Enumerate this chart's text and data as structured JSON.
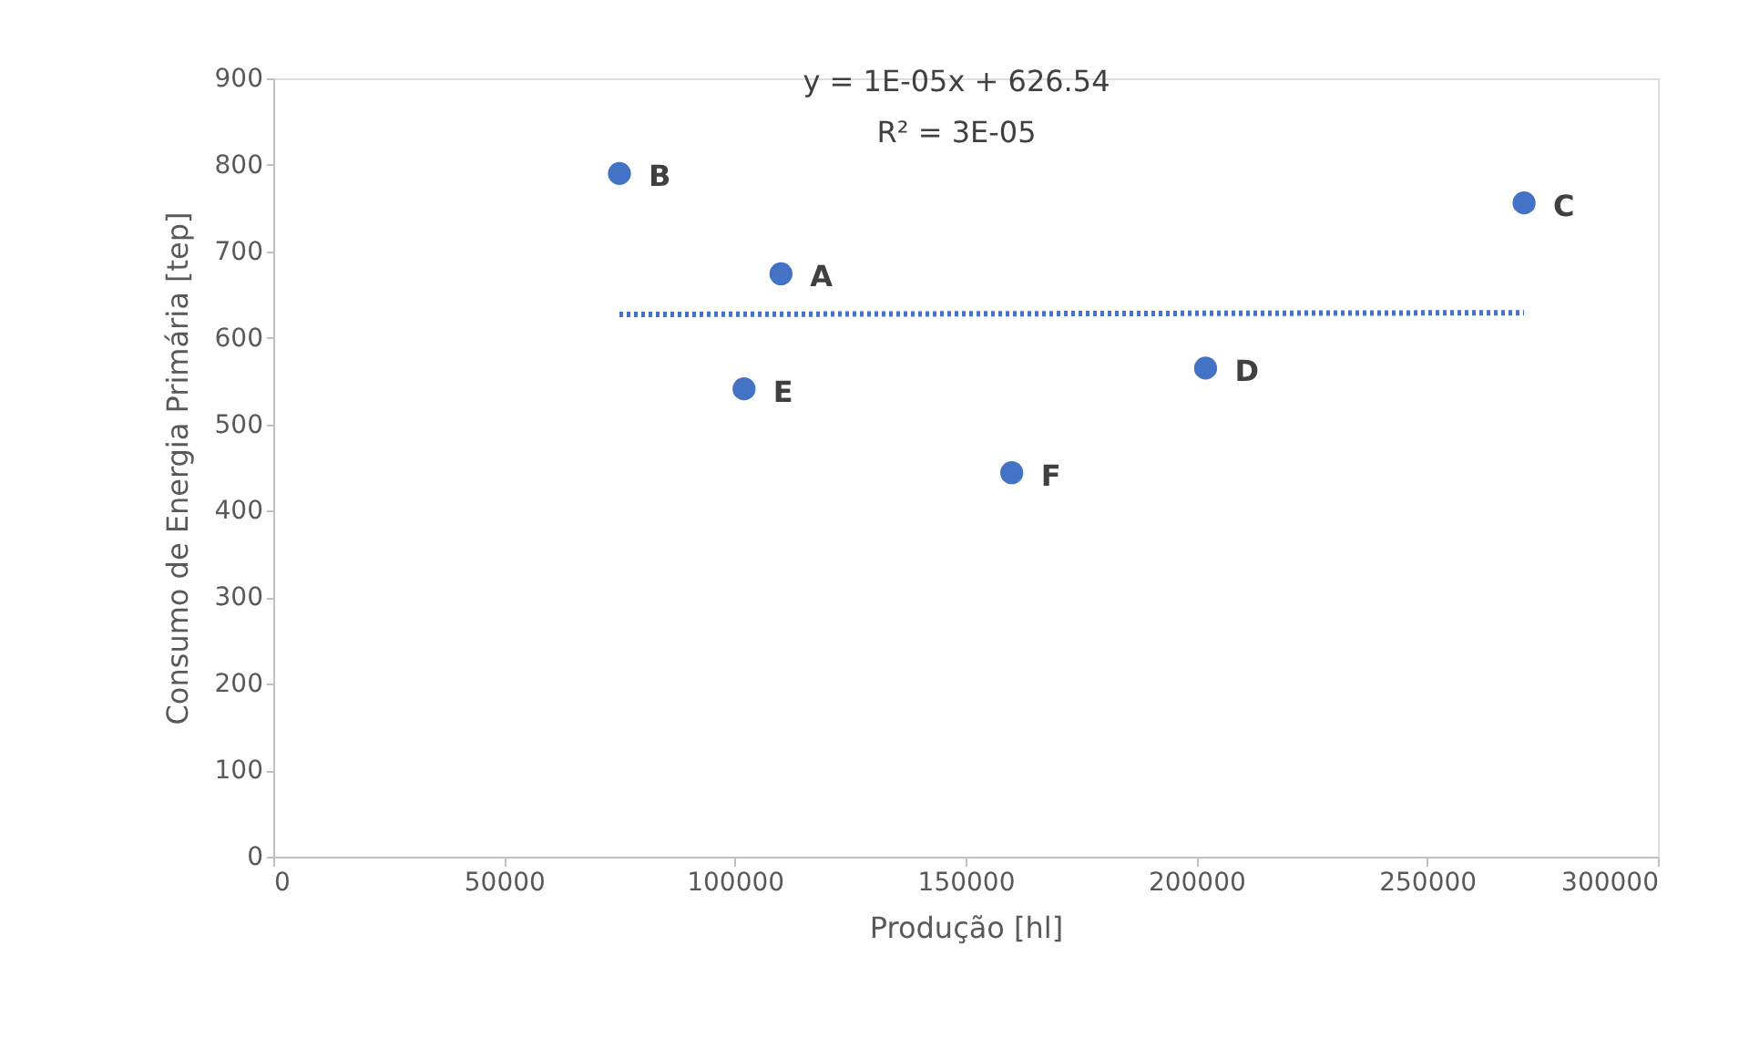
{
  "chart_data": {
    "type": "scatter",
    "xlabel": "Produção [hl]",
    "ylabel": "Consumo de Energia Primária [tep]",
    "xlim": [
      0,
      300000
    ],
    "xticks": [
      0,
      50000,
      100000,
      150000,
      200000,
      250000,
      300000
    ],
    "ylim": [
      0,
      900
    ],
    "yticks": [
      0,
      100,
      200,
      300,
      400,
      500,
      600,
      700,
      800,
      900
    ],
    "grid": false,
    "series": [
      {
        "color": "#4472c4",
        "x": [
          110000,
          75000,
          271000,
          202000,
          102000,
          160000
        ],
        "values": [
          674,
          790,
          756,
          565,
          541,
          444
        ]
      },
      {
        "type": "line",
        "marker": "none",
        "color": "#4472c4",
        "line_style": "dotted",
        "x": [
          75000,
          271000
        ],
        "values": [
          627,
          629
        ]
      }
    ],
    "annotations": [
      "y = 1E-05x + 626.54",
      "R² = 3E-05",
      {
        "text": "A",
        "x": 110000,
        "y": 674
      },
      {
        "text": "B",
        "x": 75000,
        "y": 790
      },
      {
        "text": "C",
        "x": 271000,
        "y": 756
      },
      {
        "text": "D",
        "x": 202000,
        "y": 565
      },
      {
        "text": "E",
        "x": 102000,
        "y": 541
      },
      {
        "text": "F",
        "x": 160000,
        "y": 444
      }
    ]
  }
}
